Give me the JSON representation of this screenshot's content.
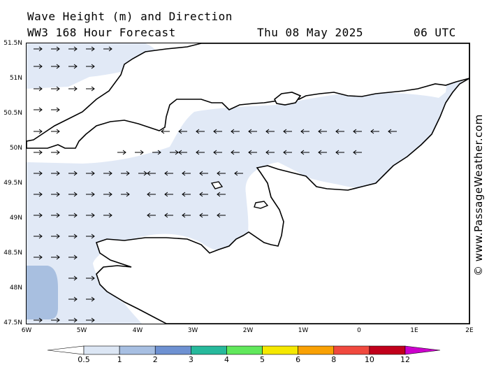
{
  "title": "Wave Height (m) and Direction",
  "model": "WW3 168 Hour Forecast",
  "valid_date": "Thu 08 May 2025",
  "valid_hour": "06 UTC",
  "watermark": "© www.PassageWeather.com",
  "lat_labels": [
    "51.5N",
    "51N",
    "50.5N",
    "50N",
    "49.5N",
    "49N",
    "48.5N",
    "48N",
    "47.5N"
  ],
  "lon_labels": [
    "6W",
    "5W",
    "4W",
    "3W",
    "2W",
    "1W",
    "0",
    "1E",
    "2E"
  ],
  "scale": {
    "labels": [
      "0.5",
      "1",
      "2",
      "3",
      "4",
      "5",
      "6",
      "8",
      "10",
      "12"
    ],
    "colors": [
      "#dce6f4",
      "#a7bfe2",
      "#6e91d2",
      "#27b99c",
      "#61e85c",
      "#f5e800",
      "#f9a104",
      "#f0493e",
      "#c1001b",
      "#cc00cc"
    ]
  },
  "colors": {
    "sea_low": "#ffffff",
    "sea_light": "#e1e9f6",
    "sea_mid": "#a8bfe0",
    "land": "#ffffff",
    "coast": "#000000"
  },
  "arrow_direction": "arrows point toward direction of wave travel"
}
